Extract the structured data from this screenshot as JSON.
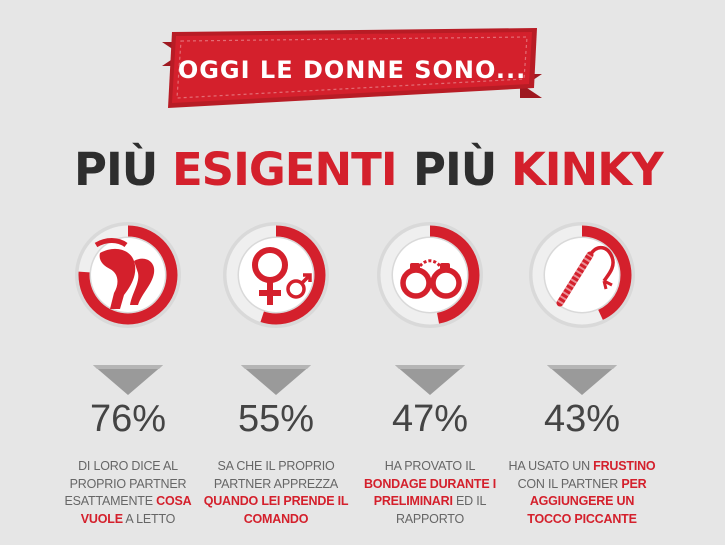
{
  "banner": {
    "title": "OGGI LE DONNE SONO..."
  },
  "headlines": [
    {
      "prefix": "PIÙ",
      "accent": "ESIGENTI"
    },
    {
      "prefix": "PIÙ",
      "accent": "KINKY"
    }
  ],
  "stats": [
    {
      "percent": "76%",
      "value": 0.76,
      "icon": "legs-icon",
      "desc_parts": [
        {
          "text": "DI LORO DICE AL PROPRIO PARTNER ESATTAMENTE ",
          "bold": false
        },
        {
          "text": "COSA VUOLE",
          "bold": true
        },
        {
          "text": " A LETTO",
          "bold": false
        }
      ]
    },
    {
      "percent": "55%",
      "value": 0.55,
      "icon": "gender-symbols-icon",
      "desc_parts": [
        {
          "text": "SA CHE IL PROPRIO PARTNER APPREZZA ",
          "bold": false
        },
        {
          "text": "QUANDO LEI PRENDE IL COMANDO",
          "bold": true
        }
      ]
    },
    {
      "percent": "47%",
      "value": 0.47,
      "icon": "handcuffs-icon",
      "desc_parts": [
        {
          "text": "HA PROVATO IL ",
          "bold": false
        },
        {
          "text": "BONDAGE DURANTE I PRELIMINARI",
          "bold": true
        },
        {
          "text": " ED IL RAPPORTO",
          "bold": false
        }
      ]
    },
    {
      "percent": "43%",
      "value": 0.43,
      "icon": "whip-icon",
      "desc_parts": [
        {
          "text": "HA USATO UN ",
          "bold": false
        },
        {
          "text": "FRUSTINO",
          "bold": true
        },
        {
          "text": " CON IL PARTNER ",
          "bold": false
        },
        {
          "text": "PER AGGIUNGERE UN TOCCO PICCANTE",
          "bold": true
        }
      ]
    }
  ],
  "colors": {
    "accent": "#d4202c",
    "dark": "#2e2e2e",
    "gray": "#666666",
    "background": "#e6e6e6"
  }
}
